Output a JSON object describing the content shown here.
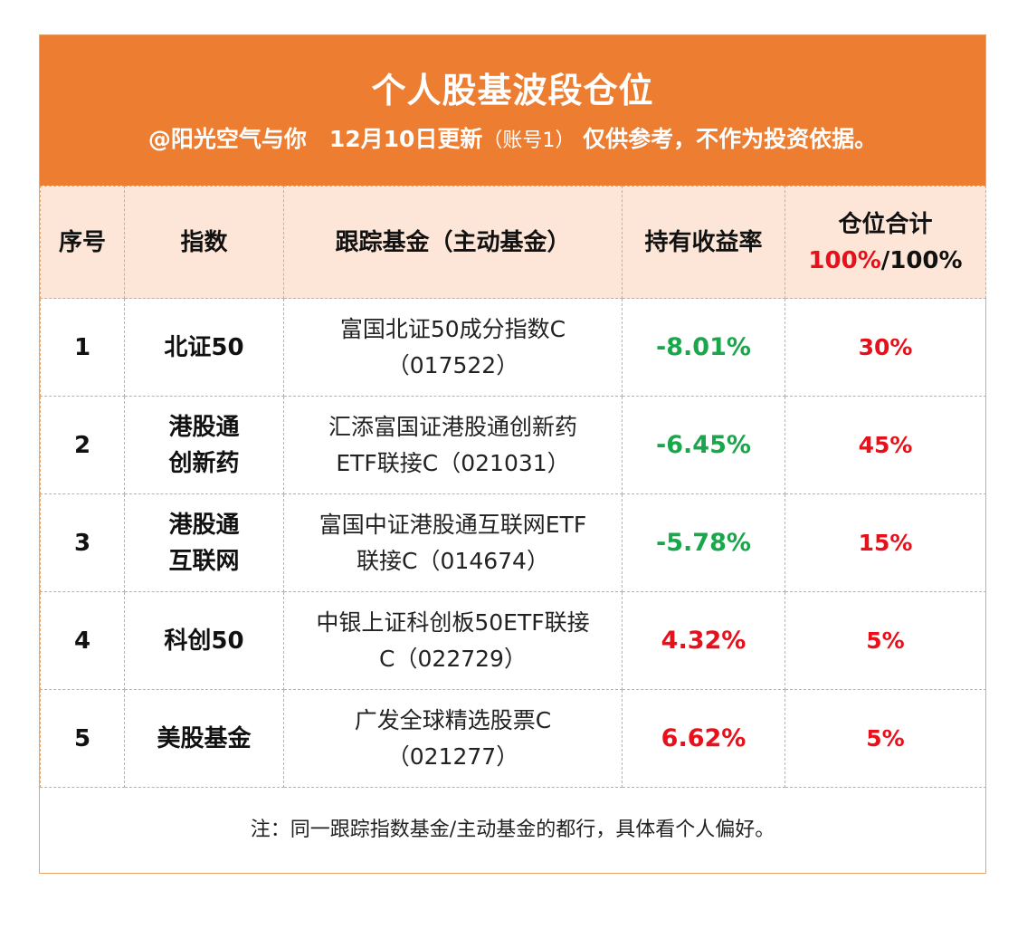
{
  "header": {
    "title": "个人股基波段仓位",
    "subtitle_main": "@阳光空气与你　12月10日更新",
    "subtitle_account": "（账号1）",
    "subtitle_disclaimer": "仅供参考，不作为投资依据。"
  },
  "table": {
    "columns": {
      "seq": "序号",
      "index": "指数",
      "fund": "跟踪基金（主动基金）",
      "return": "持有收益率",
      "position": "仓位合计",
      "position_used": "100%",
      "position_sep": "/",
      "position_total": "100%"
    },
    "rows": [
      {
        "seq": "1",
        "index_line1": "北证50",
        "index_line2": "",
        "fund_line1": "富国北证50成分指数C",
        "fund_line2": "（017522）",
        "return": "-8.01%",
        "position": "30%"
      },
      {
        "seq": "2",
        "index_line1": "港股通",
        "index_line2": "创新药",
        "fund_line1": "汇添富国证港股通创新药",
        "fund_line2": "ETF联接C（021031）",
        "return": "-6.45%",
        "position": "45%"
      },
      {
        "seq": "3",
        "index_line1": "港股通",
        "index_line2": "互联网",
        "fund_line1": "富国中证港股通互联网ETF",
        "fund_line2": "联接C（014674）",
        "return": "-5.78%",
        "position": "15%"
      },
      {
        "seq": "4",
        "index_line1": "科创50",
        "index_line2": "",
        "fund_line1": "中银上证科创板50ETF联接",
        "fund_line2": "C（022729）",
        "return": "4.32%",
        "position": "5%"
      },
      {
        "seq": "5",
        "index_line1": "美股基金",
        "index_line2": "",
        "fund_line1": "广发全球精选股票C",
        "fund_line2": "（021277）",
        "return": "6.62%",
        "position": "5%"
      }
    ]
  },
  "footer": {
    "note": "注：同一跟踪指数基金/主动基金的都行，具体看个人偏好。"
  },
  "colors": {
    "header_bg": "#ed7d31",
    "column_header_bg": "#fde6d8",
    "negative": "#1aa64a",
    "positive": "#e8111b",
    "position": "#e8111b"
  }
}
